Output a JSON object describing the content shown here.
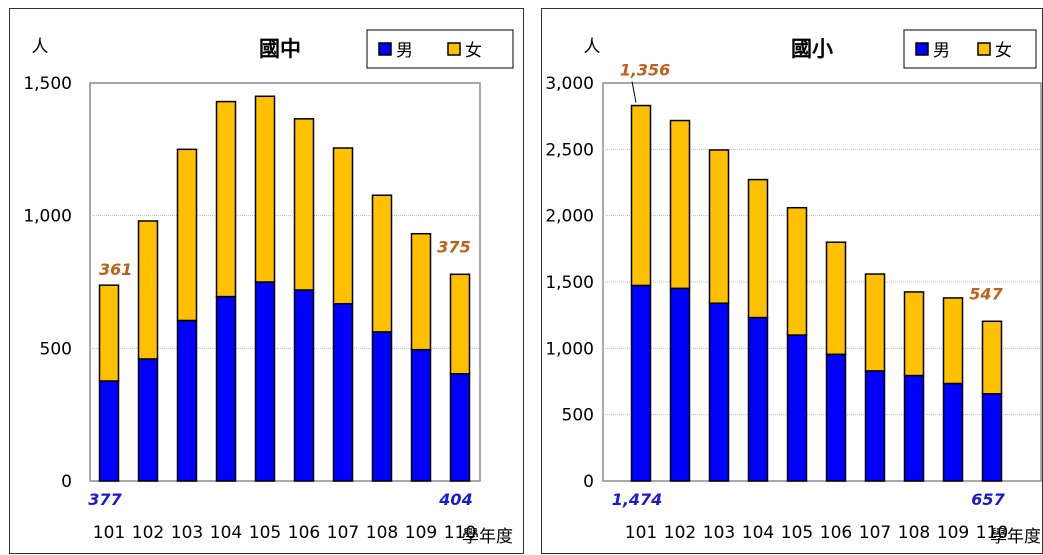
{
  "colors": {
    "male": "#0000ff",
    "female": "#ffc000",
    "male_label": "#1a1ad6",
    "female_label": "#c0601a"
  },
  "chart_data": [
    {
      "type": "bar",
      "stacked": true,
      "title": "國中",
      "ylabel": "人",
      "xlabel": "學年度",
      "categories": [
        "101",
        "102",
        "103",
        "104",
        "105",
        "106",
        "107",
        "108",
        "109",
        "110"
      ],
      "series": [
        {
          "name": "男",
          "values": [
            377,
            460,
            605,
            695,
            750,
            720,
            668,
            562,
            495,
            404
          ]
        },
        {
          "name": "女",
          "values": [
            361,
            520,
            645,
            735,
            700,
            645,
            587,
            515,
            437,
            375
          ]
        }
      ],
      "ylim": [
        0,
        1500
      ],
      "yticks": [
        "0",
        "500",
        "1,000",
        "1,500"
      ],
      "ytick_values": [
        0,
        500,
        1000,
        1500
      ],
      "legend": "top-right",
      "grid": true,
      "annotations": [
        {
          "text": "361",
          "series": "女",
          "category": "101",
          "position": "above"
        },
        {
          "text": "375",
          "series": "女",
          "category": "110",
          "position": "above"
        },
        {
          "text": "377",
          "series": "男",
          "category": "101",
          "position": "below-axis"
        },
        {
          "text": "404",
          "series": "男",
          "category": "110",
          "position": "below-axis"
        }
      ]
    },
    {
      "type": "bar",
      "stacked": true,
      "title": "國小",
      "ylabel": "人",
      "xlabel": "學年度",
      "categories": [
        "101",
        "102",
        "103",
        "104",
        "105",
        "106",
        "107",
        "108",
        "109",
        "110"
      ],
      "series": [
        {
          "name": "男",
          "values": [
            1474,
            1452,
            1340,
            1232,
            1100,
            955,
            830,
            795,
            735,
            657
          ]
        },
        {
          "name": "女",
          "values": [
            1356,
            1265,
            1155,
            1040,
            960,
            845,
            730,
            630,
            645,
            547
          ]
        }
      ],
      "ylim": [
        0,
        3000
      ],
      "yticks": [
        "0",
        "500",
        "1,000",
        "1,500",
        "2,000",
        "2,500",
        "3,000"
      ],
      "ytick_values": [
        0,
        500,
        1000,
        1500,
        2000,
        2500,
        3000
      ],
      "legend": "top-right",
      "grid": true,
      "annotations": [
        {
          "text": "1,356",
          "series": "女",
          "category": "101",
          "position": "above"
        },
        {
          "text": "547",
          "series": "女",
          "category": "110",
          "position": "above"
        },
        {
          "text": "1,474",
          "series": "男",
          "category": "101",
          "position": "below-axis"
        },
        {
          "text": "657",
          "series": "男",
          "category": "110",
          "position": "below-axis"
        }
      ]
    }
  ]
}
